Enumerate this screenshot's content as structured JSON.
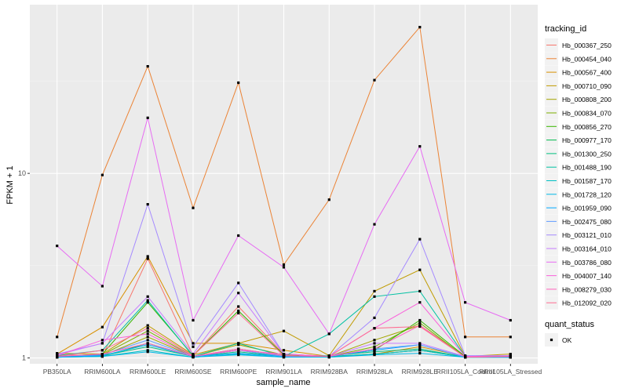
{
  "chart_data": {
    "type": "line",
    "title": "",
    "xlabel": "sample_name",
    "ylabel": "FPKM + 1",
    "y_scale": "log",
    "ylim": [
      0.93,
      82
    ],
    "y_ticks": [
      {
        "value": 1,
        "label": "1"
      },
      {
        "value": 10,
        "label": "10"
      }
    ],
    "grid": true,
    "legend_position": "right",
    "categories": [
      "PB350LA",
      "RRIM600LA",
      "RRIM600LE",
      "RRIM600SE",
      "RRIM600PE",
      "RRIM901LA",
      "RRIM928BA",
      "RRIM928LA",
      "RRIM928LE",
      "RRII105LA_Control",
      "RRII105LA_Stressed"
    ],
    "legend": {
      "color_title": "tracking_id",
      "shape_title": "quant_status",
      "shape_entries": [
        "OK"
      ]
    },
    "series": [
      {
        "name": "Hb_000367_250",
        "color": "#F8766D",
        "values": [
          1.05,
          1.02,
          3.45,
          1.03,
          1.9,
          1.05,
          1.02,
          1.05,
          1.1,
          1.02,
          1.02
        ]
      },
      {
        "name": "Hb_000454_040",
        "color": "#EB8335",
        "values": [
          1.3,
          9.8,
          38,
          6.5,
          31,
          3.2,
          7.2,
          32,
          62,
          1.3,
          1.3
        ]
      },
      {
        "name": "Hb_000567_400",
        "color": "#D89000",
        "values": [
          1.05,
          1.47,
          3.55,
          1.2,
          1.2,
          1.1,
          1.02,
          1.05,
          1.15,
          1.02,
          1.02
        ]
      },
      {
        "name": "Hb_000710_090",
        "color": "#C09B00",
        "values": [
          1.06,
          1.05,
          1.5,
          1.04,
          1.2,
          1.4,
          1.03,
          2.3,
          3.0,
          1.02,
          1.05
        ]
      },
      {
        "name": "Hb_000808_200",
        "color": "#A3A500",
        "values": [
          1.02,
          1.03,
          1.3,
          1.02,
          1.18,
          1.04,
          1.02,
          1.25,
          1.5,
          1.02,
          1.01
        ]
      },
      {
        "name": "Hb_000834_070",
        "color": "#7CAE00",
        "values": [
          1.02,
          1.04,
          1.4,
          1.02,
          1.12,
          1.03,
          1.02,
          1.15,
          1.55,
          1.01,
          1.02
        ]
      },
      {
        "name": "Hb_000856_270",
        "color": "#39B600",
        "values": [
          1.02,
          1.05,
          2.0,
          1.03,
          1.8,
          1.04,
          1.02,
          1.1,
          1.6,
          1.02,
          1.02
        ]
      },
      {
        "name": "Hb_000977_170",
        "color": "#00BB4E",
        "values": [
          1.01,
          1.02,
          1.2,
          1.02,
          1.1,
          1.02,
          1.01,
          1.05,
          1.1,
          1.01,
          1.01
        ]
      },
      {
        "name": "Hb_001300_250",
        "color": "#00BF7D",
        "values": [
          1.02,
          1.03,
          1.15,
          1.02,
          1.08,
          1.02,
          1.03,
          1.08,
          1.12,
          1.01,
          1.01
        ]
      },
      {
        "name": "Hb_001488_190",
        "color": "#00C1A3",
        "values": [
          1.03,
          1.1,
          2.05,
          1.02,
          1.2,
          1.02,
          1.35,
          2.15,
          2.3,
          1.02,
          1.02
        ]
      },
      {
        "name": "Hb_001587_170",
        "color": "#00BFC4",
        "values": [
          1.01,
          1.02,
          1.1,
          1.01,
          1.05,
          1.01,
          1.02,
          1.05,
          1.1,
          1.01,
          1.01
        ]
      },
      {
        "name": "Hb_001728_120",
        "color": "#00B8E7",
        "values": [
          1.01,
          1.02,
          1.08,
          1.01,
          1.04,
          1.01,
          1.01,
          1.04,
          1.06,
          1.01,
          1.01
        ]
      },
      {
        "name": "Hb_001959_090",
        "color": "#00A9FF",
        "values": [
          1.01,
          1.03,
          1.18,
          1.02,
          1.06,
          1.02,
          1.02,
          1.1,
          1.18,
          1.01,
          1.01
        ]
      },
      {
        "name": "Hb_002475_080",
        "color": "#619CFF",
        "values": [
          1.02,
          1.04,
          1.25,
          1.02,
          1.1,
          1.02,
          1.02,
          1.12,
          1.18,
          1.01,
          1.02
        ]
      },
      {
        "name": "Hb_003121_010",
        "color": "#A58AFF",
        "values": [
          1.05,
          1.2,
          6.8,
          1.15,
          2.55,
          1.05,
          1.02,
          1.65,
          4.4,
          1.03,
          1.03
        ]
      },
      {
        "name": "Hb_003164_010",
        "color": "#C77CFF",
        "values": [
          1.04,
          1.2,
          2.15,
          1.05,
          2.25,
          1.05,
          1.02,
          1.2,
          1.2,
          1.02,
          1.03
        ]
      },
      {
        "name": "Hb_003786_080",
        "color": "#E76BF3",
        "values": [
          4.05,
          2.45,
          20,
          1.6,
          4.6,
          3.1,
          1.35,
          5.3,
          14,
          2.0,
          1.6
        ]
      },
      {
        "name": "Hb_004007_140",
        "color": "#FA62DB",
        "values": [
          1.03,
          1.25,
          1.35,
          1.02,
          1.1,
          1.05,
          1.02,
          1.45,
          2.0,
          1.02,
          1.02
        ]
      },
      {
        "name": "Hb_008279_030",
        "color": "#FF62BC",
        "values": [
          1.02,
          1.05,
          1.2,
          1.02,
          1.12,
          1.03,
          1.02,
          1.12,
          1.5,
          1.01,
          1.02
        ]
      },
      {
        "name": "Hb_012092_020",
        "color": "#FF6C91",
        "values": [
          1.02,
          1.1,
          1.45,
          1.03,
          1.75,
          1.03,
          1.02,
          1.45,
          1.48,
          1.01,
          1.02
        ]
      }
    ]
  }
}
